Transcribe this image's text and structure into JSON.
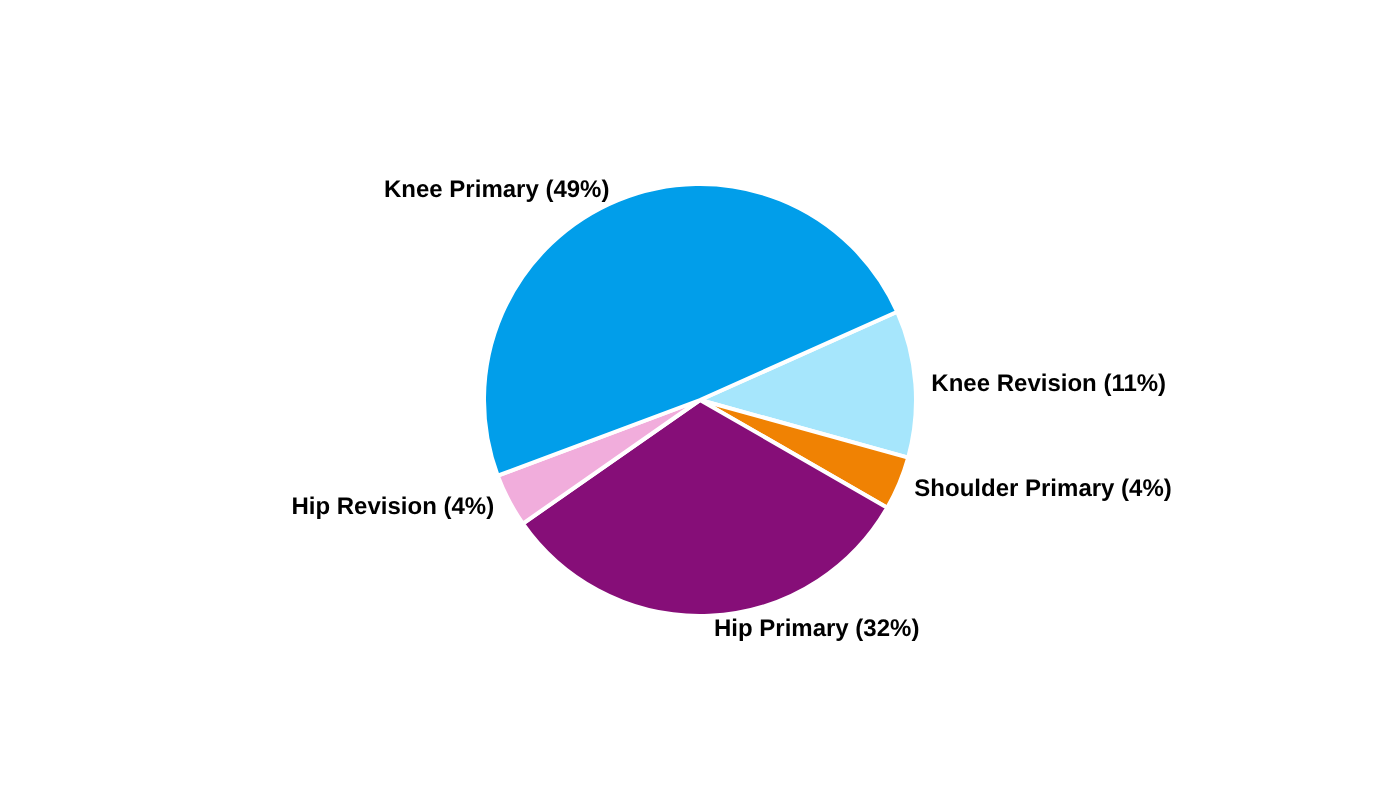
{
  "chart_data": {
    "type": "pie",
    "categories": [
      "Knee Revision (11%)",
      "Shoulder Primary (4%)",
      "Hip Primary (32%)",
      "Hip Revision (4%)",
      "Knee Primary (49%)"
    ],
    "values": [
      11,
      4,
      32,
      4,
      49
    ],
    "colors": [
      "#a6e6fc",
      "#f08203",
      "#860e78",
      "#f1addc",
      "#019eea"
    ]
  }
}
